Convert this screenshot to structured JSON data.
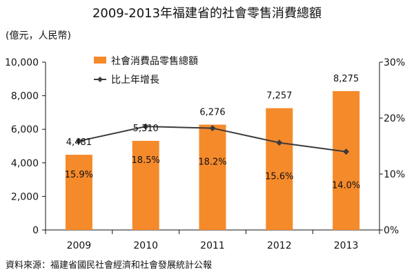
{
  "chart_data": {
    "type": "bar",
    "title": "2009-2013年福建省的社會零售消費總額",
    "unit_label": "(億元，人民幣)",
    "categories": [
      "2009",
      "2010",
      "2011",
      "2012",
      "2013"
    ],
    "series": [
      {
        "name": "社會消費品零售總額",
        "type": "bar",
        "axis": "left",
        "values": [
          4481,
          5310,
          6276,
          7257,
          8275
        ],
        "labels": [
          "4,481",
          "5,310",
          "6,276",
          "7,257",
          "8,275"
        ],
        "color": "#F58A2B"
      },
      {
        "name": "比上年增長",
        "type": "line",
        "axis": "right",
        "values": [
          15.9,
          18.5,
          18.2,
          15.6,
          14.0
        ],
        "labels": [
          "15.9%",
          "18.5%",
          "18.2%",
          "15.6%",
          "14.0%"
        ],
        "color": "#3B3B3B"
      }
    ],
    "y_left": {
      "min": 0,
      "max": 10000,
      "ticks": [
        0,
        2000,
        4000,
        6000,
        8000,
        10000
      ],
      "tick_labels": [
        "0",
        "2,000",
        "4,000",
        "6,000",
        "8,000",
        "10,000"
      ]
    },
    "y_right": {
      "min": 0,
      "max": 30,
      "ticks": [
        0,
        10,
        20,
        30
      ],
      "tick_labels": [
        "0%",
        "10%",
        "20%",
        "30%"
      ]
    },
    "legend_position": "top-left inside plot",
    "grid": false
  },
  "source_note": "資料來源：福建省國民社會經濟和社會發展統計公報"
}
